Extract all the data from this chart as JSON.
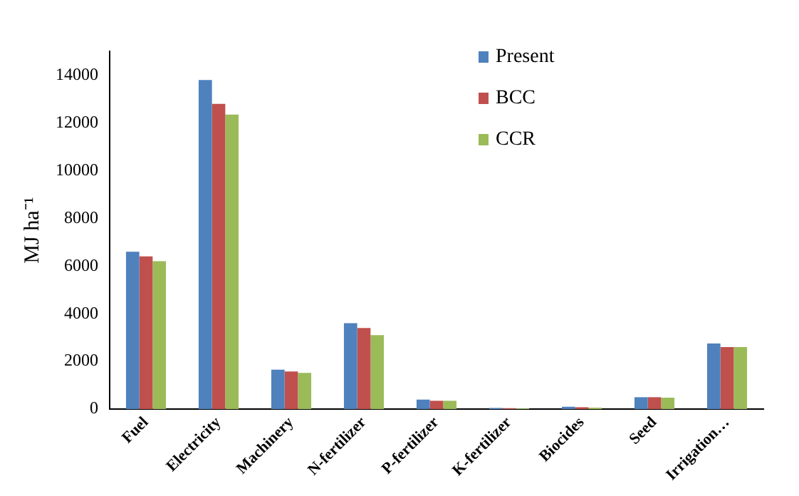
{
  "chart_data": {
    "type": "bar",
    "ylabel": "MJ ha⁻¹",
    "categories": [
      "Fuel",
      "Electricity",
      "Machinery",
      "N-fertilizer",
      "P-fertilizer",
      "K-fertilizer",
      "Biocides",
      "Seed",
      "Irrigation…"
    ],
    "series": [
      {
        "name": "Present",
        "color": "#4f81bd",
        "values": [
          6600,
          13800,
          1650,
          3600,
          400,
          50,
          100,
          500,
          2750
        ]
      },
      {
        "name": "BCC",
        "color": "#c0504d",
        "values": [
          6400,
          12800,
          1580,
          3400,
          350,
          40,
          80,
          500,
          2600
        ]
      },
      {
        "name": "CCR",
        "color": "#9bbb59",
        "values": [
          6200,
          12350,
          1520,
          3100,
          350,
          30,
          60,
          480,
          2600
        ]
      }
    ],
    "ylim": [
      0,
      15000
    ],
    "yticks": [
      0,
      2000,
      4000,
      6000,
      8000,
      10000,
      12000,
      14000
    ],
    "grid": false,
    "legend": "top right"
  }
}
